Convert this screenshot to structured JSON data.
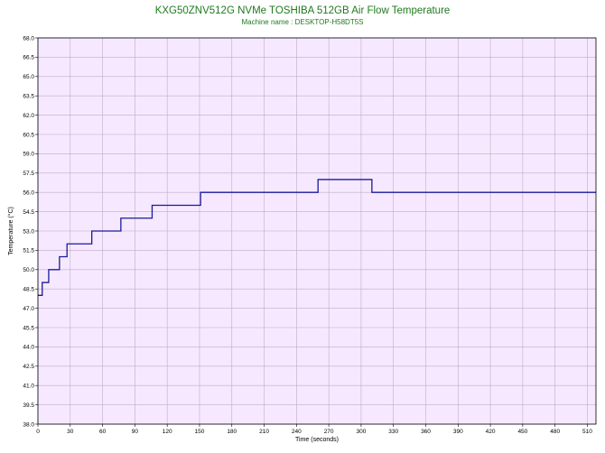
{
  "title": "KXG50ZNV512G NVMe TOSHIBA 512GB Air Flow Temperature",
  "subtitle": "Machine name : DESKTOP-H58DT5S",
  "colors": {
    "title": "#1f7a1f",
    "plot_background": "#f6e9ff",
    "grid": "#c2a9c6",
    "line": "#1a1a9a"
  },
  "chart_data": {
    "type": "line",
    "title": "KXG50ZNV512G NVMe TOSHIBA 512GB Air Flow Temperature",
    "subtitle": "Machine name : DESKTOP-H58DT5S",
    "xlabel": "Time (seconds)",
    "ylabel": "Temperature (°C)",
    "xlim": [
      0,
      518
    ],
    "ylim": [
      38.0,
      68.0
    ],
    "x_ticks": [
      "0",
      "30",
      "60",
      "90",
      "120",
      "150",
      "180",
      "210",
      "240",
      "270",
      "300",
      "330",
      "360",
      "390",
      "420",
      "450",
      "480",
      "510"
    ],
    "y_ticks": [
      "38.0",
      "39.5",
      "41.0",
      "42.5",
      "44.0",
      "45.5",
      "47.0",
      "48.5",
      "50.0",
      "51.5",
      "53.0",
      "54.5",
      "56.0",
      "57.5",
      "59.0",
      "60.5",
      "62.0",
      "63.5",
      "65.0",
      "66.5",
      "68.0"
    ],
    "grid": true,
    "series": [
      {
        "x": [
          0,
          4,
          4,
          10,
          10,
          20,
          20,
          27,
          27,
          35,
          35,
          50,
          50,
          77,
          77,
          106,
          106,
          151,
          151,
          260,
          260,
          310,
          310,
          518
        ],
        "y": [
          48.0,
          48.0,
          49.0,
          49.0,
          50.0,
          50.0,
          51.0,
          51.0,
          52.0,
          52.0,
          52.0,
          52.0,
          53.0,
          53.0,
          54.0,
          54.0,
          55.0,
          55.0,
          56.0,
          56.0,
          57.0,
          57.0,
          56.0,
          56.0
        ]
      }
    ]
  }
}
